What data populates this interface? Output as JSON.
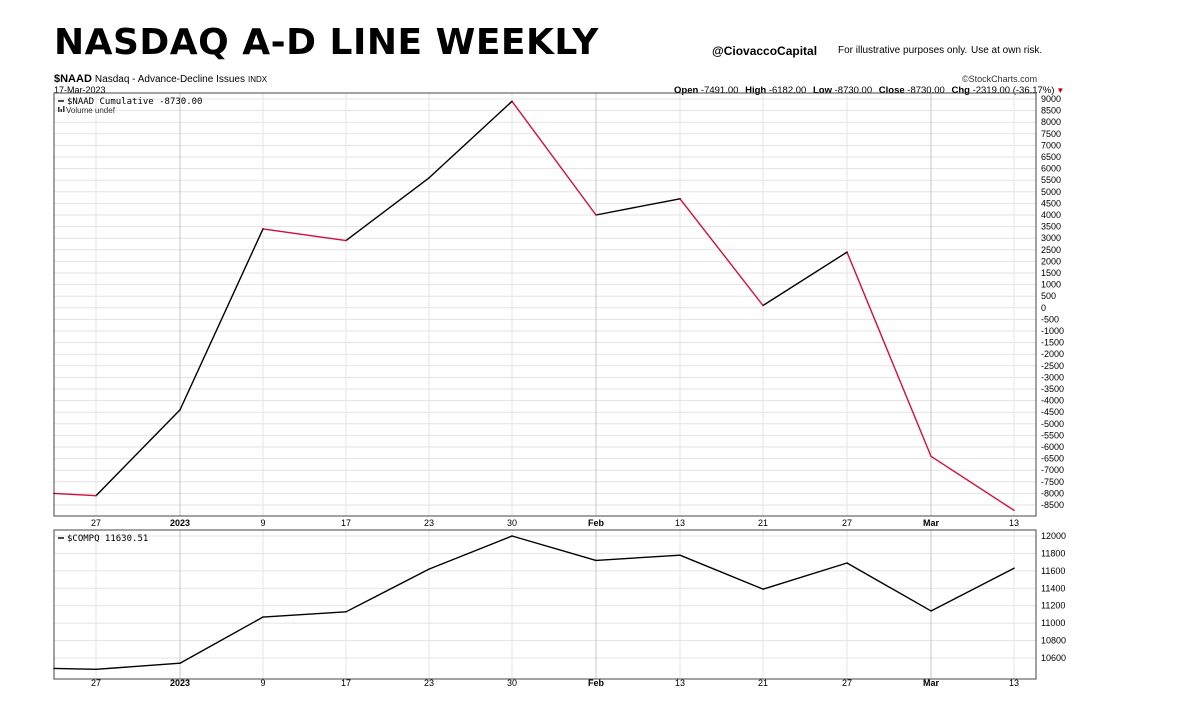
{
  "header": {
    "title": "NASDAQ A-D LINE WEEKLY",
    "handle": "@CiovaccoCapital",
    "disclaimer1": "For illustrative purposes only.",
    "disclaimer2": "Use at own risk.",
    "symbol": "$NAAD",
    "description": "Nasdaq - Advance-Decline Issues",
    "exchange": "INDX",
    "date": "17-Mar-2023",
    "brand": "©StockCharts.com",
    "ohlc": {
      "open_label": "Open",
      "open": "-7491.00",
      "high_label": "High",
      "high": "-6182.00",
      "low_label": "Low",
      "low": "-8730.00",
      "close_label": "Close",
      "close": "-8730.00",
      "chg_label": "Chg",
      "chg": "-2319.00 (-36.17%)"
    }
  },
  "colors": {
    "up": "#000000",
    "down": "#d0103a",
    "grid": "#e3e3e3"
  },
  "chart_data": [
    {
      "type": "line",
      "series": [
        {
          "name": "$NAAD Cumulative -8730.00",
          "values": [
            -8000,
            -8100,
            -4400,
            3400,
            2900,
            5600,
            8900,
            4000,
            4700,
            100,
            2400,
            -6400,
            -8730
          ]
        }
      ],
      "legend": [
        "$NAAD Cumulative -8730.00",
        "Volume undef"
      ],
      "x_labels": [
        "27",
        "2023",
        "9",
        "17",
        "23",
        "30",
        "Feb",
        "13",
        "21",
        "27",
        "Mar",
        "13"
      ],
      "ylim": [
        -9000,
        9000
      ],
      "y_ticks": [
        9000,
        8500,
        8000,
        7500,
        7000,
        6500,
        6000,
        5500,
        5000,
        4500,
        4000,
        3500,
        3000,
        2500,
        2000,
        1500,
        1000,
        500,
        0,
        -500,
        -1000,
        -1500,
        -2000,
        -2500,
        -3000,
        -3500,
        -4000,
        -4500,
        -5000,
        -5500,
        -6000,
        -6500,
        -7000,
        -7500,
        -8000,
        -8500
      ],
      "coloring": "segments colored black when rising, red when falling",
      "grid": true
    },
    {
      "type": "line",
      "series": [
        {
          "name": "$COMPQ 11630.51",
          "values": [
            10480,
            10470,
            10540,
            11070,
            11130,
            11620,
            12000,
            11720,
            11780,
            11390,
            11690,
            11140,
            11630.51
          ]
        }
      ],
      "legend": [
        "$COMPQ 11630.51"
      ],
      "x_labels": [
        "27",
        "2023",
        "9",
        "17",
        "23",
        "30",
        "Feb",
        "13",
        "21",
        "27",
        "Mar",
        "13"
      ],
      "ylim": [
        10440,
        12030
      ],
      "y_ticks": [
        12000,
        11800,
        11600,
        11400,
        11200,
        11000,
        10800,
        10600
      ],
      "grid": true
    }
  ]
}
